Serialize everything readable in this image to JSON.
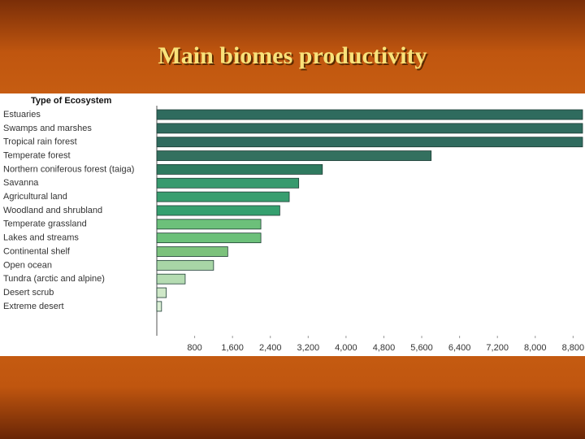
{
  "chart_data": {
    "type": "bar",
    "orientation": "horizontal",
    "title": "Main biomes productivity",
    "y_label": "Type of Ecosystem",
    "categories": [
      "Estuaries",
      "Swamps and marshes",
      "Tropical rain forest",
      "Temperate forest",
      "Northern coniferous forest (taiga)",
      "Savanna",
      "Agricultural land",
      "Woodland and shrubland",
      "Temperate grassland",
      "Lakes and streams",
      "Continental shelf",
      "Open ocean",
      "Tundra (arctic and alpine)",
      "Desert scrub",
      "Extreme desert"
    ],
    "values": [
      9000,
      9000,
      9000,
      5800,
      3500,
      3000,
      2800,
      2600,
      2200,
      2200,
      1500,
      1200,
      600,
      200,
      100
    ],
    "colors": [
      "#2f6b5e",
      "#2f6b5e",
      "#2f6b5e",
      "#33705f",
      "#2f7a5f",
      "#379a6e",
      "#389e6f",
      "#35a06f",
      "#6cc07a",
      "#6cc07a",
      "#7cc27c",
      "#a8d6a6",
      "#b5dcb2",
      "#cfe8c8",
      "#dcefd6"
    ],
    "xlim": [
      0,
      9000
    ],
    "xticks": [
      800,
      {
        "value": 1600,
        "label": "1,600"
      },
      {
        "value": 2400,
        "label": "2,400"
      },
      {
        "value": 3200,
        "label": "3,200"
      },
      {
        "value": 4000,
        "label": "4,000"
      },
      {
        "value": 4800,
        "label": "4,800"
      },
      {
        "value": 5600,
        "label": "5,600"
      },
      {
        "value": 6400,
        "label": "6,400"
      },
      {
        "value": 7200,
        "label": "7,200"
      },
      {
        "value": 8000,
        "label": "8,000"
      },
      {
        "value": 8800,
        "label": "8,800"
      }
    ],
    "grid": false
  }
}
